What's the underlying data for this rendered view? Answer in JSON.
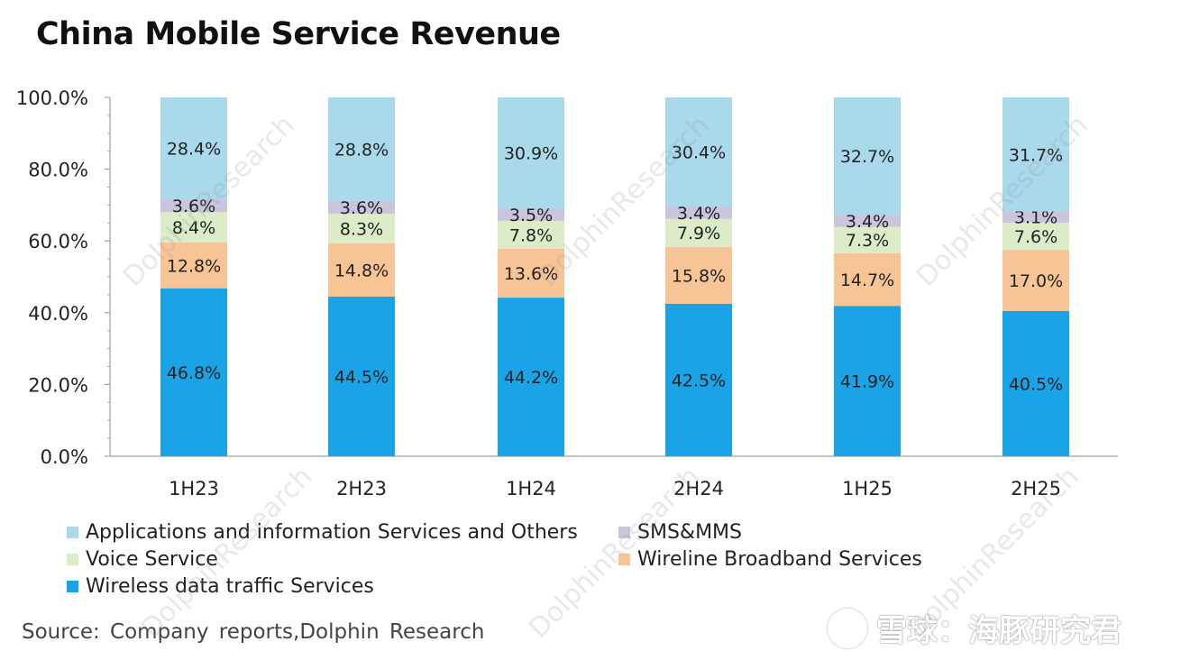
{
  "title": "China Mobile Service Revenue",
  "source": "Source: Company reports,Dolphin Research",
  "watermark_text": "DolphinResearch",
  "brand": {
    "text": "雪球：海豚研究君",
    "logo_icon": "snowball-logo-icon"
  },
  "chart_data": {
    "type": "bar",
    "stacked": true,
    "categories": [
      "1H23",
      "2H23",
      "1H24",
      "2H24",
      "1H25",
      "2H25"
    ],
    "ylim": [
      0,
      100
    ],
    "yticks": [
      "0.0%",
      "20.0%",
      "40.0%",
      "60.0%",
      "80.0%",
      "100.0%"
    ],
    "legend_position": "bottom",
    "series": [
      {
        "name": "Wireless data traffic Services",
        "color": "#1aa3e6",
        "values": [
          46.8,
          44.5,
          44.2,
          42.5,
          41.9,
          40.5
        ],
        "labels": [
          "46.8%",
          "44.5%",
          "44.2%",
          "42.5%",
          "41.9%",
          "40.5%"
        ]
      },
      {
        "name": "Wireline Broadband Services",
        "color": "#f7c496",
        "values": [
          12.8,
          14.8,
          13.6,
          15.8,
          14.7,
          17.0
        ],
        "labels": [
          "12.8%",
          "14.8%",
          "13.6%",
          "15.8%",
          "14.7%",
          "17.0%"
        ]
      },
      {
        "name": "Voice Service",
        "color": "#dcebc8",
        "values": [
          8.4,
          8.3,
          7.8,
          7.9,
          7.3,
          7.6
        ],
        "labels": [
          "8.4%",
          "8.3%",
          "7.8%",
          "7.9%",
          "7.3%",
          "7.6%"
        ]
      },
      {
        "name": "SMS&MMS",
        "color": "#c9c5dd",
        "values": [
          3.6,
          3.6,
          3.5,
          3.4,
          3.4,
          3.1
        ],
        "labels": [
          "3.6%",
          "3.6%",
          "3.5%",
          "3.4%",
          "3.4%",
          "3.1%"
        ]
      },
      {
        "name": "Applications and information Services and Others",
        "color": "#a9d9ea",
        "values": [
          28.4,
          28.8,
          30.9,
          30.4,
          32.7,
          31.7
        ],
        "labels": [
          "28.4%",
          "28.8%",
          "30.9%",
          "30.4%",
          "32.7%",
          "31.7%"
        ]
      }
    ]
  }
}
